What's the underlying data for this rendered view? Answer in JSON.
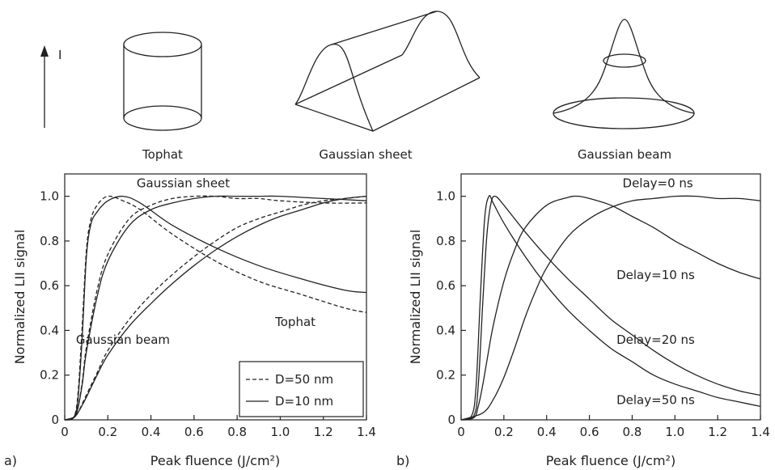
{
  "schematics": {
    "intensity_label": "I",
    "tophat_label": "Tophat",
    "sheet_label": "Gaussian sheet",
    "beam_label": "Gaussian beam"
  },
  "chart_data": [
    {
      "type": "line",
      "panel_label": "a)",
      "xlabel": "Peak fluence (J/cm²)",
      "ylabel": "Normalized LII signal",
      "xlim": [
        0,
        1.4
      ],
      "ylim": [
        0,
        1.1
      ],
      "xticks": [
        "0",
        "0.2",
        "0.4",
        "0.6",
        "0.8",
        "1.0",
        "1.2",
        "1.4"
      ],
      "yticks": [
        "0",
        "0.2",
        "0.4",
        "0.6",
        "0.8",
        "1.0"
      ],
      "grid": false,
      "legend": {
        "placement": "bottom-right",
        "entries": [
          {
            "label": "D=50 nm",
            "style": "dashed"
          },
          {
            "label": "D=10 nm",
            "style": "solid"
          }
        ]
      },
      "annotations": [
        {
          "text": "Gaussian sheet",
          "x": 0.55,
          "y": 1.04
        },
        {
          "text": "Tophat",
          "x": 1.07,
          "y": 0.42
        },
        {
          "text": "Gaussian beam",
          "x": 0.27,
          "y": 0.34
        }
      ],
      "series": [
        {
          "style": "solid",
          "x": [
            0,
            0.04,
            0.06,
            0.08,
            0.1,
            0.12,
            0.15,
            0.2,
            0.27,
            0.35,
            0.5,
            0.7,
            0.9,
            1.1,
            1.3,
            1.4
          ],
          "y": [
            0,
            0.01,
            0.08,
            0.35,
            0.72,
            0.87,
            0.93,
            0.98,
            1.0,
            0.97,
            0.87,
            0.77,
            0.69,
            0.63,
            0.58,
            0.57
          ]
        },
        {
          "style": "dashed",
          "x": [
            0,
            0.04,
            0.06,
            0.08,
            0.1,
            0.12,
            0.15,
            0.2,
            0.27,
            0.35,
            0.5,
            0.7,
            0.9,
            1.1,
            1.3,
            1.4
          ],
          "y": [
            0,
            0.01,
            0.1,
            0.4,
            0.75,
            0.89,
            0.96,
            1.0,
            0.98,
            0.94,
            0.83,
            0.71,
            0.62,
            0.56,
            0.5,
            0.48
          ]
        },
        {
          "style": "solid",
          "x": [
            0,
            0.05,
            0.08,
            0.1,
            0.15,
            0.2,
            0.3,
            0.4,
            0.5,
            0.6,
            0.7,
            0.8,
            0.9,
            1.0,
            1.2,
            1.4
          ],
          "y": [
            0,
            0.02,
            0.15,
            0.3,
            0.55,
            0.71,
            0.87,
            0.94,
            0.97,
            0.99,
            1.0,
            1.0,
            1.0,
            1.0,
            0.99,
            0.98
          ]
        },
        {
          "style": "dashed",
          "x": [
            0,
            0.05,
            0.08,
            0.1,
            0.15,
            0.2,
            0.3,
            0.4,
            0.5,
            0.6,
            0.7,
            0.8,
            0.9,
            1.0,
            1.2,
            1.4
          ],
          "y": [
            0,
            0.02,
            0.16,
            0.32,
            0.58,
            0.74,
            0.9,
            0.96,
            0.99,
            1.0,
            1.0,
            0.99,
            0.99,
            0.98,
            0.97,
            0.97
          ]
        },
        {
          "style": "solid",
          "x": [
            0,
            0.04,
            0.06,
            0.1,
            0.15,
            0.2,
            0.3,
            0.4,
            0.5,
            0.6,
            0.7,
            0.8,
            0.9,
            1.0,
            1.1,
            1.2,
            1.3,
            1.4
          ],
          "y": [
            0,
            0.01,
            0.03,
            0.1,
            0.2,
            0.29,
            0.42,
            0.52,
            0.61,
            0.69,
            0.76,
            0.82,
            0.87,
            0.91,
            0.94,
            0.97,
            0.99,
            1.0
          ]
        },
        {
          "style": "dashed",
          "x": [
            0,
            0.04,
            0.06,
            0.1,
            0.15,
            0.2,
            0.3,
            0.4,
            0.5,
            0.6,
            0.7,
            0.8,
            0.9,
            1.0,
            1.1,
            1.2,
            1.3,
            1.4
          ],
          "y": [
            0,
            0.01,
            0.03,
            0.11,
            0.21,
            0.31,
            0.45,
            0.56,
            0.65,
            0.73,
            0.8,
            0.86,
            0.9,
            0.93,
            0.96,
            0.98,
            0.99,
            1.0
          ]
        }
      ]
    },
    {
      "type": "line",
      "panel_label": "b)",
      "xlabel": "Peak fluence (J/cm²)",
      "ylabel": "Normalized LII signal",
      "xlim": [
        0,
        1.4
      ],
      "ylim": [
        0,
        1.1
      ],
      "xticks": [
        "0",
        "0.2",
        "0.4",
        "0.6",
        "0.8",
        "1.0",
        "1.2",
        "1.4"
      ],
      "yticks": [
        "0",
        "0.2",
        "0.4",
        "0.6",
        "0.8",
        "1.0"
      ],
      "grid": false,
      "annotations": [
        {
          "text": "Delay=0 ns",
          "x": 0.92,
          "y": 1.04
        },
        {
          "text": "Delay=10 ns",
          "x": 0.91,
          "y": 0.63
        },
        {
          "text": "Delay=20 ns",
          "x": 0.91,
          "y": 0.34
        },
        {
          "text": "Delay=50 ns",
          "x": 0.91,
          "y": 0.07
        }
      ],
      "series": [
        {
          "name": "Delay=0 ns",
          "x": [
            0,
            0.1,
            0.15,
            0.2,
            0.25,
            0.3,
            0.35,
            0.4,
            0.5,
            0.6,
            0.7,
            0.8,
            0.9,
            1.0,
            1.1,
            1.2,
            1.3,
            1.4
          ],
          "y": [
            0,
            0.03,
            0.09,
            0.19,
            0.32,
            0.46,
            0.58,
            0.68,
            0.82,
            0.9,
            0.95,
            0.98,
            0.99,
            1.0,
            1.0,
            0.99,
            0.99,
            0.98
          ]
        },
        {
          "name": "Delay=10 ns",
          "x": [
            0,
            0.06,
            0.08,
            0.1,
            0.12,
            0.15,
            0.2,
            0.25,
            0.3,
            0.4,
            0.5,
            0.55,
            0.6,
            0.7,
            0.8,
            0.9,
            1.0,
            1.1,
            1.2,
            1.3,
            1.4
          ],
          "y": [
            0,
            0.01,
            0.06,
            0.15,
            0.26,
            0.42,
            0.62,
            0.76,
            0.86,
            0.96,
            0.995,
            1.0,
            0.99,
            0.96,
            0.91,
            0.86,
            0.8,
            0.75,
            0.7,
            0.66,
            0.63
          ]
        },
        {
          "name": "Delay=20 ns",
          "x": [
            0,
            0.06,
            0.08,
            0.1,
            0.12,
            0.14,
            0.16,
            0.2,
            0.3,
            0.4,
            0.5,
            0.6,
            0.7,
            0.8,
            0.9,
            1.0,
            1.1,
            1.2,
            1.3,
            1.4
          ],
          "y": [
            0,
            0.02,
            0.15,
            0.5,
            0.82,
            0.97,
            1.0,
            0.96,
            0.84,
            0.73,
            0.63,
            0.54,
            0.45,
            0.38,
            0.31,
            0.25,
            0.2,
            0.16,
            0.13,
            0.11
          ]
        },
        {
          "name": "Delay=50 ns",
          "x": [
            0,
            0.05,
            0.07,
            0.09,
            0.11,
            0.13,
            0.15,
            0.2,
            0.3,
            0.4,
            0.5,
            0.6,
            0.7,
            0.8,
            0.9,
            1.0,
            1.1,
            1.2,
            1.3,
            1.4
          ],
          "y": [
            0,
            0.02,
            0.15,
            0.55,
            0.9,
            1.0,
            0.97,
            0.88,
            0.73,
            0.6,
            0.49,
            0.4,
            0.32,
            0.26,
            0.2,
            0.16,
            0.13,
            0.1,
            0.08,
            0.06
          ]
        }
      ]
    }
  ]
}
